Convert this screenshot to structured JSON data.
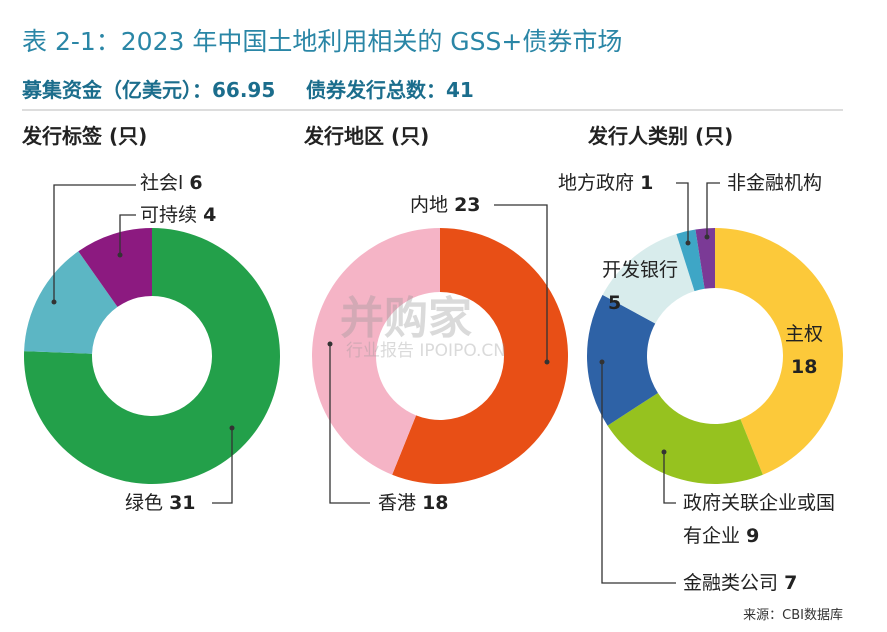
{
  "title": "表 2-1：2023 年中国土地利用相关的 GSS+债券市场",
  "summary": [
    {
      "label": "募集资金（亿美元）：",
      "value": "66.95"
    },
    {
      "label": "债券发行总数：",
      "value": "41"
    }
  ],
  "source": "来源：CBI数据库",
  "watermark": {
    "main": "并购家",
    "sub": "行业报告 IPOIPO.CN"
  },
  "chart_data": [
    {
      "type": "pie",
      "title": "发行标签 (只)",
      "categories": [
        "绿色",
        "社会l",
        "可持续"
      ],
      "values": [
        31,
        6,
        4
      ],
      "colors": [
        "#23a04a",
        "#5cb6c4",
        "#8c1a80"
      ]
    },
    {
      "type": "pie",
      "title": "发行地区 (只)",
      "categories": [
        "内地",
        "香港"
      ],
      "values": [
        23,
        18
      ],
      "colors": [
        "#e84f16",
        "#f5b4c6"
      ]
    },
    {
      "type": "pie",
      "title": "发行人类别 (只)",
      "categories": [
        "主权",
        "政府关联企业或国有企业",
        "金融类公司",
        "开发银行",
        "地方政府",
        "非金融机构"
      ],
      "values": [
        18,
        9,
        7,
        5,
        1,
        1
      ],
      "value_labels": [
        "18",
        "9",
        "7",
        "5",
        "1",
        null
      ],
      "colors": [
        "#fcc93a",
        "#96c21f",
        "#2e62a6",
        "#d8ecec",
        "#3ea6c6",
        "#7b3a96"
      ]
    }
  ]
}
